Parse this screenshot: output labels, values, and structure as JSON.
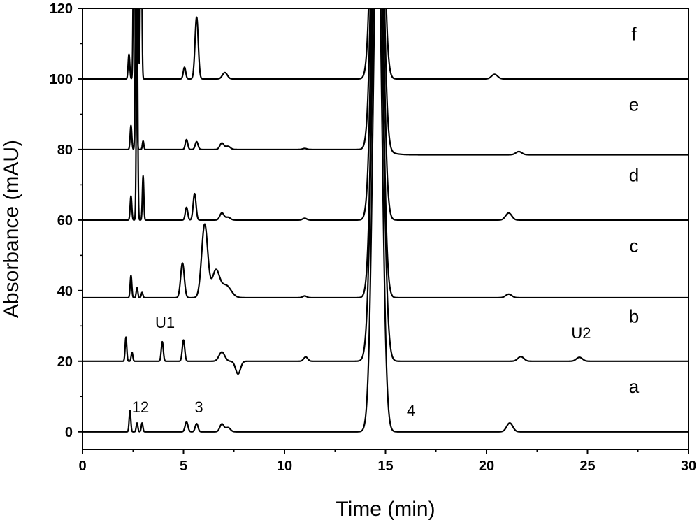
{
  "chart_data": {
    "type": "line",
    "xlabel": "Time (min)",
    "ylabel": "Absorbance (mAU)",
    "xlim": [
      0,
      30
    ],
    "ylim": [
      -5,
      120
    ],
    "x_ticks": [
      0,
      5,
      10,
      15,
      20,
      25,
      30
    ],
    "y_ticks": [
      0,
      20,
      40,
      60,
      80,
      100,
      120
    ],
    "grid": false,
    "series": [
      {
        "name": "a",
        "baseline": 0,
        "end_baseline": 0,
        "peaks": [
          {
            "t": 2.35,
            "h": 6,
            "w": 0.04
          },
          {
            "t": 2.7,
            "h": 2.5,
            "w": 0.04
          },
          {
            "t": 2.95,
            "h": 2.5,
            "w": 0.04
          },
          {
            "t": 5.15,
            "h": 2.8,
            "w": 0.07
          },
          {
            "t": 5.65,
            "h": 2.3,
            "w": 0.07
          },
          {
            "t": 6.9,
            "h": 2.2,
            "w": 0.1
          },
          {
            "t": 7.2,
            "h": 1.2,
            "w": 0.12
          },
          {
            "t": 14.6,
            "h": 150,
            "w": 0.22
          },
          {
            "t": 21.15,
            "h": 2.5,
            "w": 0.15
          }
        ]
      },
      {
        "name": "b",
        "baseline": 20,
        "end_baseline": 20,
        "peaks": [
          {
            "t": 2.15,
            "h": 6.8,
            "w": 0.04
          },
          {
            "t": 2.45,
            "h": 2.5,
            "w": 0.04
          },
          {
            "t": 3.95,
            "h": 5.5,
            "w": 0.05
          },
          {
            "t": 5.0,
            "h": 6.0,
            "w": 0.06
          },
          {
            "t": 6.9,
            "h": 2.6,
            "w": 0.14
          },
          {
            "t": 7.7,
            "h": -3.6,
            "w": 0.12
          },
          {
            "t": 11.05,
            "h": 1.2,
            "w": 0.1
          },
          {
            "t": 14.6,
            "h": 150,
            "w": 0.24
          },
          {
            "t": 21.7,
            "h": 1.3,
            "w": 0.15
          },
          {
            "t": 24.6,
            "h": 1.1,
            "w": 0.15
          }
        ]
      },
      {
        "name": "c",
        "baseline": 38,
        "end_baseline": 38,
        "peaks": [
          {
            "t": 2.4,
            "h": 6.3,
            "w": 0.04
          },
          {
            "t": 2.7,
            "h": 2.8,
            "w": 0.04
          },
          {
            "t": 2.95,
            "h": 1.5,
            "w": 0.04
          },
          {
            "t": 4.95,
            "h": 9.8,
            "w": 0.09
          },
          {
            "t": 6.05,
            "h": 20.8,
            "w": 0.15
          },
          {
            "t": 6.6,
            "h": 7.5,
            "w": 0.18
          },
          {
            "t": 7.1,
            "h": 3.5,
            "w": 0.25
          },
          {
            "t": 11.0,
            "h": 0.5,
            "w": 0.1
          },
          {
            "t": 14.6,
            "h": 150,
            "w": 0.22
          },
          {
            "t": 21.1,
            "h": 1.0,
            "w": 0.15
          }
        ]
      },
      {
        "name": "d",
        "baseline": 60,
        "end_baseline": 60,
        "peaks": [
          {
            "t": 2.4,
            "h": 6.8,
            "w": 0.04
          },
          {
            "t": 2.7,
            "h": 60,
            "w": 0.035
          },
          {
            "t": 3.0,
            "h": 12.5,
            "w": 0.035
          },
          {
            "t": 5.15,
            "h": 3.6,
            "w": 0.06
          },
          {
            "t": 5.55,
            "h": 7.5,
            "w": 0.07
          },
          {
            "t": 6.9,
            "h": 2.0,
            "w": 0.1
          },
          {
            "t": 7.2,
            "h": 0.8,
            "w": 0.12
          },
          {
            "t": 11.0,
            "h": 0.5,
            "w": 0.1
          },
          {
            "t": 14.6,
            "h": 150,
            "w": 0.22
          },
          {
            "t": 21.1,
            "h": 2.0,
            "w": 0.15
          }
        ]
      },
      {
        "name": "e",
        "baseline": 80,
        "end_baseline": 78.5,
        "peaks": [
          {
            "t": 2.4,
            "h": 6.8,
            "w": 0.04
          },
          {
            "t": 2.65,
            "h": 60,
            "w": 0.035
          },
          {
            "t": 3.0,
            "h": 2.4,
            "w": 0.035
          },
          {
            "t": 5.15,
            "h": 2.8,
            "w": 0.06
          },
          {
            "t": 5.65,
            "h": 2.2,
            "w": 0.07
          },
          {
            "t": 6.9,
            "h": 1.8,
            "w": 0.1
          },
          {
            "t": 7.2,
            "h": 0.9,
            "w": 0.12
          },
          {
            "t": 11.0,
            "h": 0.3,
            "w": 0.1
          },
          {
            "t": 14.6,
            "h": 150,
            "w": 0.22
          },
          {
            "t": 21.6,
            "h": 0.9,
            "w": 0.15
          }
        ]
      },
      {
        "name": "f",
        "baseline": 100,
        "end_baseline": 100,
        "peaks": [
          {
            "t": 2.3,
            "h": 7,
            "w": 0.04
          },
          {
            "t": 2.55,
            "h": 60,
            "w": 0.035
          },
          {
            "t": 2.72,
            "h": 60,
            "w": 0.035
          },
          {
            "t": 2.9,
            "h": 60,
            "w": 0.035
          },
          {
            "t": 5.05,
            "h": 3.3,
            "w": 0.06
          },
          {
            "t": 5.65,
            "h": 17.5,
            "w": 0.08
          },
          {
            "t": 7.05,
            "h": 1.8,
            "w": 0.12
          },
          {
            "t": 14.6,
            "h": 150,
            "w": 0.22
          },
          {
            "t": 20.4,
            "h": 1.3,
            "w": 0.15
          }
        ]
      }
    ],
    "trace_labels": [
      {
        "text": "a",
        "x": 27.3,
        "y": 11
      },
      {
        "text": "b",
        "x": 27.3,
        "y": 31
      },
      {
        "text": "c",
        "x": 27.3,
        "y": 51
      },
      {
        "text": "d",
        "x": 27.3,
        "y": 71
      },
      {
        "text": "e",
        "x": 27.3,
        "y": 91
      },
      {
        "text": "f",
        "x": 27.3,
        "y": 111
      }
    ],
    "annotations": [
      {
        "text": "12",
        "x": 2.45,
        "y": 5.5
      },
      {
        "text": "3",
        "x": 5.55,
        "y": 5.5
      },
      {
        "text": "4",
        "x": 16.05,
        "y": 4.5
      },
      {
        "text": "U1",
        "x": 3.6,
        "y": 29.5
      },
      {
        "text": "U2",
        "x": 24.2,
        "y": 26.5
      }
    ]
  }
}
